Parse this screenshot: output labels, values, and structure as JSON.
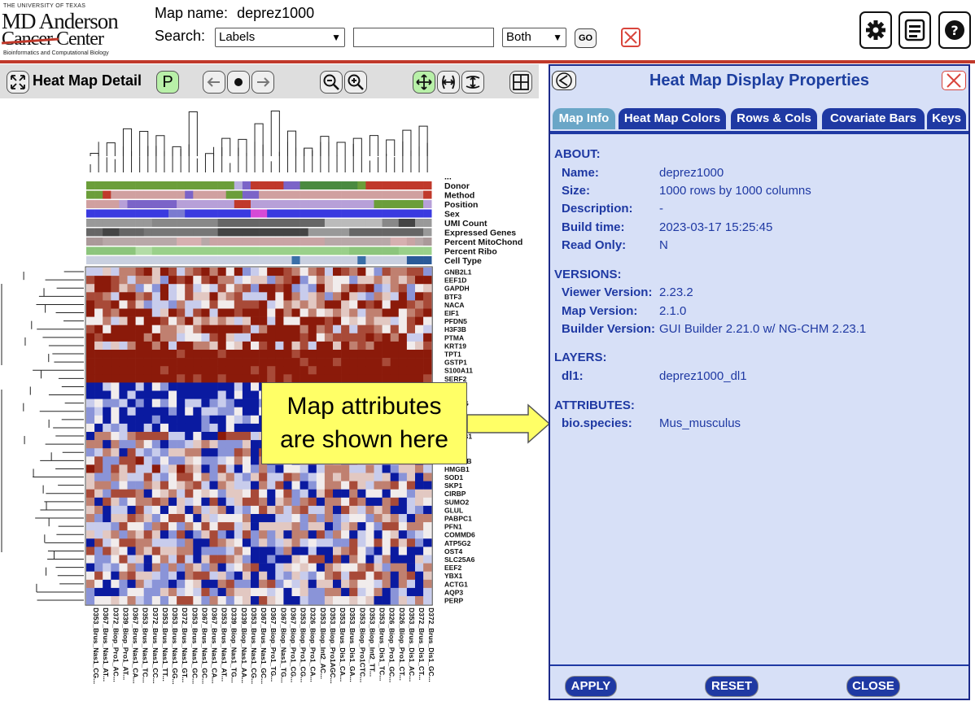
{
  "header": {
    "logo_lines": [
      "THE UNIVERSITY OF TEXAS",
      "MD Anderson",
      "Cancer Center",
      "Bioinformatics and Computational Biology"
    ],
    "map_name_label": "Map name:",
    "map_name_value": "deprez1000",
    "search_label": "Search:",
    "search_type_value": "Labels",
    "search_text_value": "",
    "search_scope_value": "Both",
    "go_label": "GO",
    "icons": [
      "close-icon",
      "gear-icon",
      "layout-icon",
      "help-icon"
    ]
  },
  "detail": {
    "title": "Heat Map Detail",
    "p_label": "P"
  },
  "heatmap": {
    "column_count": 42,
    "row_labels": [
      "GNB2L1",
      "EEF1D",
      "GAPDH",
      "BTF3",
      "NACA",
      "EIF1",
      "PFDN5",
      "H3F3B",
      "PTMA",
      "KRT19",
      "TPT1",
      "GSTP1",
      "S100A11",
      "SERF2",
      "",
      "",
      "",
      "",
      "SNRPA",
      "",
      "",
      "",
      "",
      "MYL12B",
      "HMGB1",
      "SOD1",
      "SKP1",
      "CIRBP",
      "SUMO2",
      "GLUL",
      "PABPC1",
      "PFN1",
      "COMMD6",
      "ATP5G2",
      "OST4",
      "SLC25A6",
      "EEF2",
      "YBX1",
      "ACTG1",
      "AQP3",
      "PERP"
    ],
    "partial_labels": {
      "m1": "...HG",
      "m2": "...2",
      "m3": "...AB1",
      "m4": "...A"
    },
    "covariate_labels": [
      "...",
      "Donor",
      "Method",
      "Position",
      "Sex",
      "UMI Count",
      "Expressed Genes",
      "Percent MitoChond",
      "Percent Ribo",
      "Cell Type"
    ],
    "column_labels": [
      "D353_Brus_Nas1_CG...",
      "D367_Brus_Nas1_AT...",
      "D372_Biop_Pro1_AC...",
      "D339_Biop_Pro1_AT...",
      "D367_Brus_Nas1_CA...",
      "D353_Brus_Nas1_TC...",
      "D372_Brus_Nas1_CC...",
      "D353_Brus_Nas1_TT...",
      "D353_Brus_Nas1_GG...",
      "D372_Brus_Nas1_GT...",
      "D353_Brus_Nas1_GC...",
      "D367_Brus_Nas1_GC...",
      "D367_Brus_Nas1_CA...",
      "D353_Brus_Nas1_AT...",
      "D339_Biop_Nas1_TG...",
      "D339_Biop_Nas1_AA...",
      "D353_Brus_Nas1_CG...",
      "D367_Brus_Nas1_GC...",
      "D367_Biop_Pro1_TG...",
      "D367_Biop_Nas1_TG...",
      "D367_Biop_Pro1_CG...",
      "D353_Biop_Pro1_CG...",
      "D326_Biop_Pro1_CA...",
      "D353_Biop_Int2_AC...",
      "D353_Biop_Pro1AGC...",
      "D353_Brus_Dis1_CA...",
      "D353_Brus_Dis1_GA...",
      "D353_Biop_Pro1CTC...",
      "D353_Biop_Int2_TT...",
      "D353_Brus_Dis1_TC...",
      "D326_Biop_Pro1_GC...",
      "D326_Biop_Pro1_CT...",
      "D353_Brus_Dis1_AC...",
      "D372_Brus_Dis1_CT...",
      "D372_Brus_Dis1_GC..."
    ],
    "colors": {
      "high": "#8b1a0a",
      "mid_high": "#c08070",
      "neutral": "#f1ecec",
      "mid_low": "#8a94d8",
      "low": "#0a1aa0"
    }
  },
  "callout": {
    "lines": [
      "Map attributes",
      "are shown here"
    ]
  },
  "properties": {
    "title": "Heat Map Display Properties",
    "tabs": [
      {
        "label": "Map Info",
        "active": true
      },
      {
        "label": "Heat Map Colors",
        "active": false
      },
      {
        "label": "Rows & Cols",
        "active": false
      },
      {
        "label": "Covariate Bars",
        "active": false
      },
      {
        "label": "Keys",
        "active": false
      }
    ],
    "about": {
      "heading": "ABOUT:",
      "fields": [
        {
          "label": "Name:",
          "value": "deprez1000"
        },
        {
          "label": "Size:",
          "value": "1000 rows by 1000 columns"
        },
        {
          "label": "Description:",
          "value": "-"
        },
        {
          "label": "Build time:",
          "value": "2023-03-17 15:25:45"
        },
        {
          "label": "Read Only:",
          "value": "N"
        }
      ]
    },
    "versions": {
      "heading": "VERSIONS:",
      "fields": [
        {
          "label": "Viewer Version:",
          "value": "2.23.2"
        },
        {
          "label": "Map Version:",
          "value": "2.1.0"
        },
        {
          "label": "Builder Version:",
          "value": "GUI Builder 2.21.0 w/ NG-CHM 2.23.1"
        }
      ]
    },
    "layers": {
      "heading": "LAYERS:",
      "fields": [
        {
          "label": "dl1:",
          "value": "deprez1000_dl1"
        }
      ]
    },
    "attributes": {
      "heading": "ATTRIBUTES:",
      "fields": [
        {
          "label": "bio.species:",
          "value": "Mus_musculus"
        }
      ]
    },
    "buttons": {
      "apply": "APPLY",
      "reset": "RESET",
      "close": "CLOSE"
    }
  }
}
